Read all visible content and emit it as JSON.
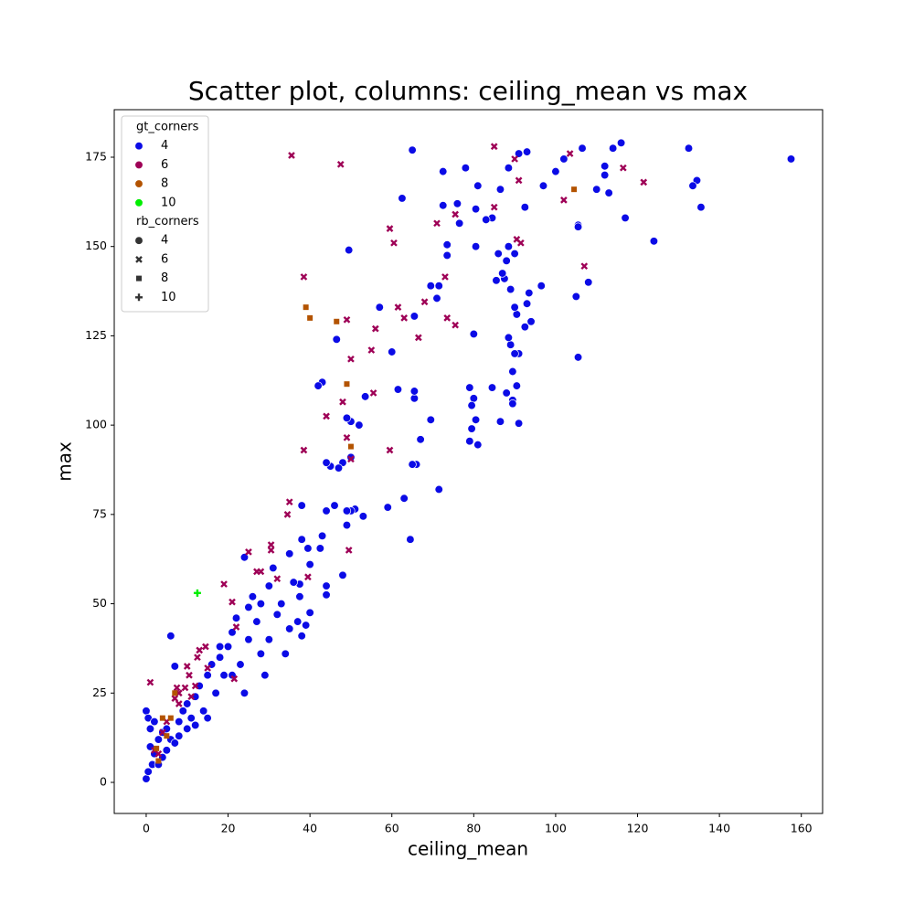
{
  "chart_data": {
    "type": "scatter",
    "title": "Scatter plot, columns: ceiling_mean vs max",
    "xlabel": "ceiling_mean",
    "ylabel": "max",
    "xlim": [
      -7.8,
      165.2
    ],
    "ylim": [
      -8.7,
      188.3
    ],
    "xticks": [
      0,
      20,
      40,
      60,
      80,
      100,
      120,
      140,
      160
    ],
    "yticks": [
      0,
      25,
      50,
      75,
      100,
      125,
      150,
      175
    ],
    "legend": "upper left",
    "hue": {
      "title": "gt_corners",
      "levels": [
        "4",
        "6",
        "8",
        "10"
      ],
      "colors": [
        "#0b0be6",
        "#9e0056",
        "#b35300",
        "#00ee00"
      ]
    },
    "style": {
      "title": "rb_corners",
      "levels": [
        "4",
        "6",
        "8",
        "10"
      ],
      "markers": [
        "circle",
        "x",
        "square",
        "plus"
      ],
      "color": "#333333"
    },
    "series": [
      {
        "hue": "4",
        "style": "4",
        "x": [
          157.5,
          135.5,
          134.5,
          133.5,
          132.5,
          124,
          117,
          116,
          114,
          113,
          112,
          112,
          110,
          108,
          106.5,
          105.5,
          105.5,
          105.5,
          105,
          102,
          100,
          97,
          96.5,
          94,
          93.5,
          93,
          92.5,
          92.5,
          93,
          91,
          91,
          91,
          90.5,
          90.5,
          90,
          90,
          90,
          89.5,
          89.5,
          89.5,
          89,
          89,
          88.5,
          88,
          88.5,
          88.5,
          88,
          87.5,
          87,
          86.5,
          86.5,
          86,
          85.5,
          84.5,
          84.5,
          83,
          81,
          80.5,
          80.5,
          81,
          80.5,
          80,
          80,
          79.5,
          79.5,
          79,
          79,
          78,
          76.5,
          76,
          73.5,
          73.5,
          72.5,
          72.5,
          71.5,
          71.5,
          71,
          69.5,
          69.5,
          67,
          66,
          65.5,
          65.5,
          65.5,
          65,
          65,
          64.5,
          63,
          62.5,
          61.5,
          60,
          59,
          57,
          53.5,
          53,
          52,
          51,
          50,
          50,
          50,
          49.5,
          49,
          49,
          49,
          48,
          48,
          47,
          46.5,
          46,
          45,
          44,
          44,
          44,
          44,
          43,
          43,
          42.5,
          42,
          40,
          40,
          39.5,
          38,
          38,
          37.5,
          37.5,
          0,
          0.5,
          0,
          0.5,
          1,
          1,
          1.5,
          2,
          2,
          3,
          3,
          4,
          4,
          5,
          5,
          6,
          6,
          7,
          7,
          8,
          8,
          9,
          10,
          10,
          11,
          12,
          12,
          13,
          14,
          15,
          15,
          16,
          17,
          18,
          18,
          19,
          20,
          21,
          21,
          22,
          23,
          24,
          24,
          25,
          25,
          26,
          27,
          28,
          28,
          29,
          30,
          30,
          31,
          32,
          33,
          34,
          35,
          35,
          36,
          37,
          38,
          39
        ],
        "values": [
          174.5,
          161,
          168.5,
          167,
          177.5,
          151.5,
          158,
          179,
          177.5,
          165,
          172.5,
          170,
          166,
          140,
          177.5,
          156,
          155.5,
          119,
          136,
          174.5,
          171,
          167,
          139,
          129,
          137,
          176.5,
          161,
          127.5,
          134,
          176,
          120,
          100.5,
          131,
          111,
          133,
          120,
          148,
          107,
          106,
          115,
          122.5,
          138,
          124.5,
          109,
          150,
          172,
          146,
          141,
          142.5,
          166,
          101,
          148,
          140.5,
          158,
          110.5,
          157.5,
          167,
          150,
          160.5,
          94.5,
          101.5,
          107.5,
          125.5,
          99,
          105.5,
          110.5,
          95.5,
          172,
          156.5,
          162,
          150.5,
          147.5,
          161.5,
          171,
          139,
          82,
          135.5,
          139,
          101.5,
          96,
          89,
          130.5,
          107.5,
          109.5,
          89,
          177,
          68,
          79.5,
          163.5,
          110,
          120.5,
          77,
          133,
          108,
          74.5,
          100,
          76.5,
          101,
          76,
          91,
          149,
          102,
          76,
          72,
          89.5,
          58,
          88,
          124,
          77.5,
          88.5,
          76,
          89.5,
          55,
          52.5,
          112,
          69,
          65.5,
          111,
          47.5,
          61,
          65.5,
          77.5,
          68,
          55.5,
          52,
          1,
          3,
          20,
          18,
          15,
          10,
          5,
          8,
          17,
          5,
          12,
          7,
          14,
          9,
          15,
          41,
          12,
          11,
          32.5,
          17,
          13,
          20,
          15,
          22,
          18,
          24,
          16,
          27,
          20,
          30,
          18,
          33,
          25,
          35,
          38,
          30,
          38,
          42,
          30,
          46,
          33,
          63,
          25,
          49,
          40,
          52,
          45,
          36,
          50,
          30,
          55,
          40,
          60,
          47,
          50,
          36,
          64,
          43,
          56,
          45,
          41,
          44
        ]
      },
      {
        "hue": "6",
        "style": "6",
        "x": [
          35.5,
          47.5,
          85,
          90,
          91,
          103.5,
          102,
          116.5,
          121.5,
          107,
          90.5,
          91.5,
          85,
          75.5,
          71,
          59.5,
          60.5,
          38.5,
          73,
          68,
          61.5,
          63,
          49,
          56,
          73.5,
          75.5,
          66.5,
          50,
          55,
          48,
          55.5,
          44,
          49,
          38.5,
          59.5,
          50,
          35,
          34.5,
          30.5,
          30.5,
          49.5,
          39.5,
          19,
          25,
          27,
          28,
          32,
          21,
          22,
          21.5,
          12.5,
          13,
          14.5,
          10,
          10.5,
          9.5,
          8,
          7,
          7.5,
          1,
          2,
          3,
          5,
          12,
          15,
          8,
          11,
          4
        ],
        "values": [
          175.5,
          173,
          178,
          174.5,
          168.5,
          176,
          163,
          172,
          168,
          144.5,
          152,
          151,
          161,
          159,
          156.5,
          155,
          151,
          141.5,
          141.5,
          134.5,
          133,
          130,
          129.5,
          127,
          130,
          128,
          124.5,
          118.5,
          121,
          106.5,
          109,
          102.5,
          96.5,
          93,
          93,
          90.5,
          78.5,
          75,
          66.5,
          65,
          65,
          57.5,
          55.5,
          64.5,
          59,
          59,
          57,
          50.5,
          43.5,
          29,
          35,
          37,
          38,
          32.5,
          30,
          26.5,
          25,
          23.5,
          26.5,
          28,
          9,
          8,
          17,
          27,
          32,
          22,
          24,
          14
        ]
      },
      {
        "hue": "8",
        "style": "8",
        "x": [
          39,
          40,
          46.5,
          49,
          50,
          104.5,
          4,
          6,
          7,
          2.5,
          3,
          5
        ],
        "values": [
          133,
          130,
          129,
          111.5,
          94,
          166,
          18,
          18,
          25,
          9.5,
          6,
          13
        ]
      },
      {
        "hue": "10",
        "style": "10",
        "x": [
          12.5
        ],
        "values": [
          53
        ]
      }
    ]
  }
}
